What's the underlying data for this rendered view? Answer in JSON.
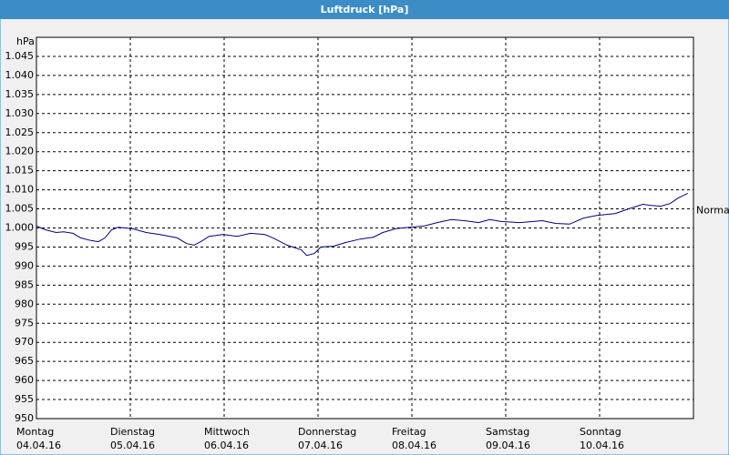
{
  "chart_data": {
    "type": "line",
    "title": "Luftdruck [hPa]",
    "y_label": "hPa",
    "x_labels": [
      {
        "day": "Montag",
        "date": "04.04.16"
      },
      {
        "day": "Dienstag",
        "date": "05.04.16"
      },
      {
        "day": "Mittwoch",
        "date": "06.04.16"
      },
      {
        "day": "Donnerstag",
        "date": "07.04.16"
      },
      {
        "day": "Freitag",
        "date": "08.04.16"
      },
      {
        "day": "Samstag",
        "date": "09.04.16"
      },
      {
        "day": "Sonntag",
        "date": "10.04.16"
      }
    ],
    "xticks": [
      0,
      1,
      2,
      3,
      4,
      5,
      6
    ],
    "xlim": [
      0,
      7
    ],
    "ylim": [
      950,
      1050
    ],
    "yticks": [
      950,
      955,
      960,
      965,
      970,
      975,
      980,
      985,
      990,
      995,
      {
        "value": 1000,
        "label": "1.000"
      },
      {
        "value": 1005,
        "label": "1.005"
      },
      {
        "value": 1010,
        "label": "1.010"
      },
      {
        "value": 1015,
        "label": "1.015"
      },
      {
        "value": 1020,
        "label": "1.020"
      },
      {
        "value": 1025,
        "label": "1.025"
      },
      {
        "value": 1030,
        "label": "1.030"
      },
      {
        "value": 1035,
        "label": "1.035"
      },
      {
        "value": 1040,
        "label": "1.040"
      },
      {
        "value": 1045,
        "label": "1.045"
      }
    ],
    "grid": true,
    "annotations": [
      {
        "text": "Normal",
        "value": 1004.5
      }
    ],
    "series": [
      {
        "color": "#000080",
        "x": [
          0,
          0.1,
          0.21,
          0.29,
          0.39,
          0.47,
          0.58,
          0.66,
          0.73,
          0.8,
          0.87,
          1.02,
          1.17,
          1.31,
          1.5,
          1.6,
          1.68,
          1.75,
          1.84,
          1.99,
          2.14,
          2.28,
          2.43,
          2.52,
          2.67,
          2.82,
          2.88,
          2.96,
          3.03,
          3.16,
          3.3,
          3.45,
          3.59,
          3.69,
          3.83,
          3.98,
          4.13,
          4.27,
          4.42,
          4.56,
          4.71,
          4.83,
          4.95,
          5.15,
          5.29,
          5.39,
          5.53,
          5.68,
          5.83,
          5.97,
          6.17,
          6.31,
          6.46,
          6.55,
          6.65,
          6.75,
          6.84,
          6.94
        ],
        "values": [
          1000.5,
          999.5,
          998.8,
          999.0,
          998.6,
          997.4,
          996.7,
          996.4,
          997.4,
          999.5,
          1000.2,
          999.8,
          998.8,
          998.3,
          997.4,
          995.9,
          995.5,
          996.4,
          997.8,
          998.3,
          997.8,
          998.6,
          998.3,
          997.4,
          995.5,
          994.3,
          992.8,
          993.3,
          995.0,
          995.2,
          996.2,
          997.1,
          997.6,
          998.8,
          999.8,
          1000.2,
          1000.5,
          1001.4,
          1002.2,
          1001.9,
          1001.4,
          1002.2,
          1001.7,
          1001.4,
          1001.7,
          1001.9,
          1001.2,
          1001.0,
          1002.6,
          1003.3,
          1003.8,
          1005.0,
          1006.2,
          1005.9,
          1005.7,
          1006.4,
          1007.9,
          1009.1
        ]
      }
    ]
  }
}
